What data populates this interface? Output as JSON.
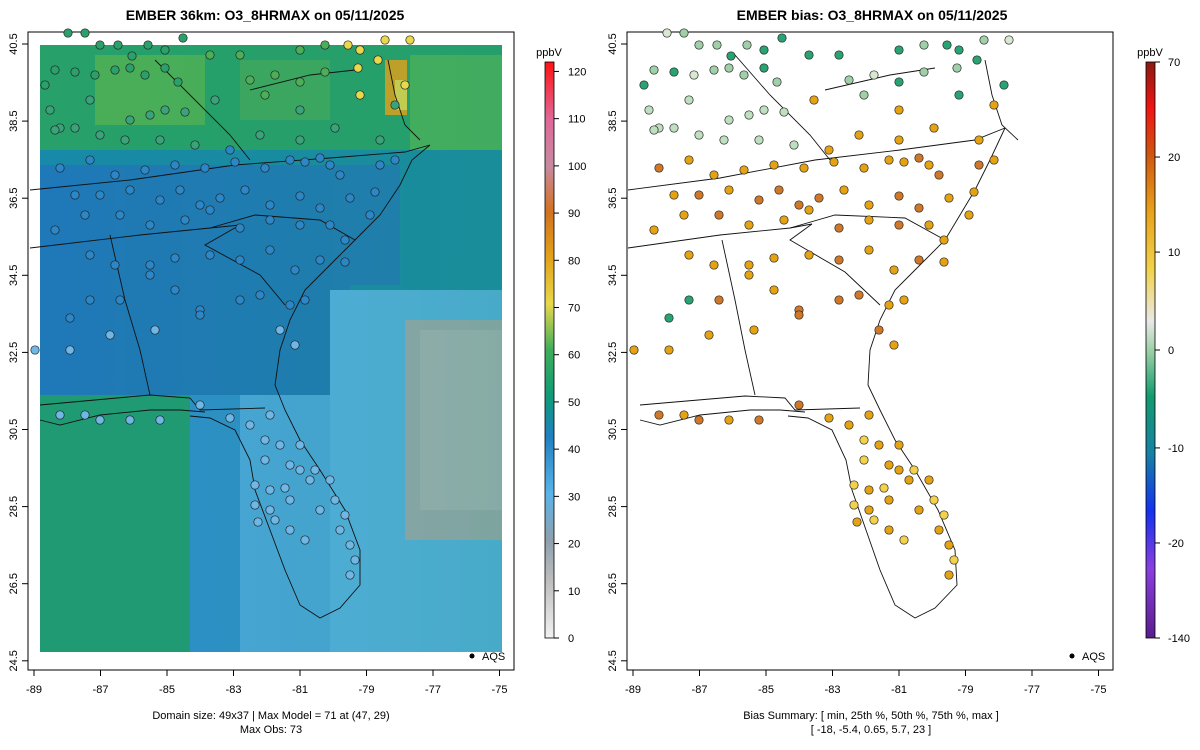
{
  "left_panel": {
    "title": "EMBER 36km: O3_8HRMAX on 05/11/2025",
    "x_ticks": [
      "-89",
      "-87",
      "-85",
      "-83",
      "-81",
      "-79",
      "-77",
      "-75"
    ],
    "y_ticks": [
      "40.5",
      "38.5",
      "36.5",
      "34.5",
      "32.5",
      "30.5",
      "28.5",
      "26.5",
      "24.5"
    ],
    "legend_label": "AQS",
    "footer_line1": "Domain size: 49x37 | Max Model = 71 at (47, 29)",
    "footer_line2": "Max Obs: 73",
    "colorbar": {
      "unit": "ppbV",
      "ticks": [
        "120",
        "110",
        "100",
        "90",
        "80",
        "70",
        "60",
        "50",
        "40",
        "30",
        "20",
        "10",
        "0"
      ],
      "range": [
        0,
        122
      ]
    }
  },
  "right_panel": {
    "title": "EMBER bias: O3_8HRMAX on 05/11/2025",
    "x_ticks": [
      "-89",
      "-87",
      "-85",
      "-83",
      "-81",
      "-79",
      "-77",
      "-75"
    ],
    "y_ticks": [
      "40.5",
      "38.5",
      "36.5",
      "34.5",
      "32.5",
      "30.5",
      "28.5",
      "26.5",
      "24.5"
    ],
    "legend_label": "AQS",
    "footer_line1": "Bias Summary: [ min, 25th %, 50th %, 75th %, max ]",
    "footer_line2": "[ -18,   -5.4,   0.65,   5.7,   23 ]",
    "colorbar": {
      "unit": "ppbV",
      "ticks": [
        "70",
        "20",
        "10",
        "0",
        "-10",
        "-20",
        "-140"
      ]
    }
  },
  "colors": {
    "model_land_north": "#1e9a6e",
    "model_core": "#1f78b8",
    "model_ocean": "#56b0e6",
    "model_grey": "#9da8b1",
    "bias_positive": "#e5a314",
    "bias_negative": "#2aa374"
  }
}
